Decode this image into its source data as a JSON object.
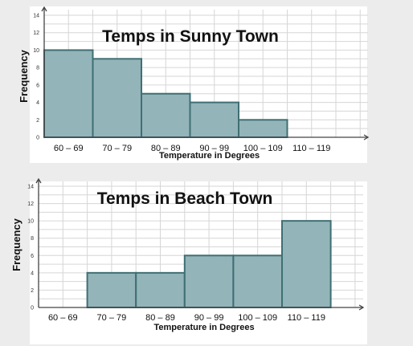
{
  "chart_data": [
    {
      "type": "bar",
      "title": "Temps in Sunny Town",
      "xlabel": "Temperature in Degrees",
      "ylabel": "Frequency",
      "categories": [
        "60 – 69",
        "70 – 79",
        "80 – 89",
        "90 – 99",
        "100 – 109",
        "110 – 119"
      ],
      "values": [
        10,
        9,
        5,
        4,
        2,
        0
      ],
      "ylim": [
        0,
        14
      ],
      "yticks": [
        "0",
        "2",
        "4",
        "6",
        "8",
        "10",
        "12",
        "14"
      ],
      "grid": true,
      "colors": {
        "bar_fill": "#93b4b9",
        "bar_stroke": "#3f6f73"
      }
    },
    {
      "type": "bar",
      "title": "Temps in Beach Town",
      "xlabel": "Temperature in Degrees",
      "ylabel": "Frequency",
      "categories": [
        "60 – 69",
        "70 – 79",
        "80 – 89",
        "90 – 99",
        "100 – 109",
        "110 – 119"
      ],
      "values": [
        0,
        4,
        4,
        6,
        6,
        10
      ],
      "ylim": [
        0,
        14
      ],
      "yticks": [
        "0",
        "2",
        "4",
        "6",
        "8",
        "10",
        "12",
        "14"
      ],
      "grid": true,
      "colors": {
        "bar_fill": "#93b4b9",
        "bar_stroke": "#3f6f73"
      }
    }
  ]
}
